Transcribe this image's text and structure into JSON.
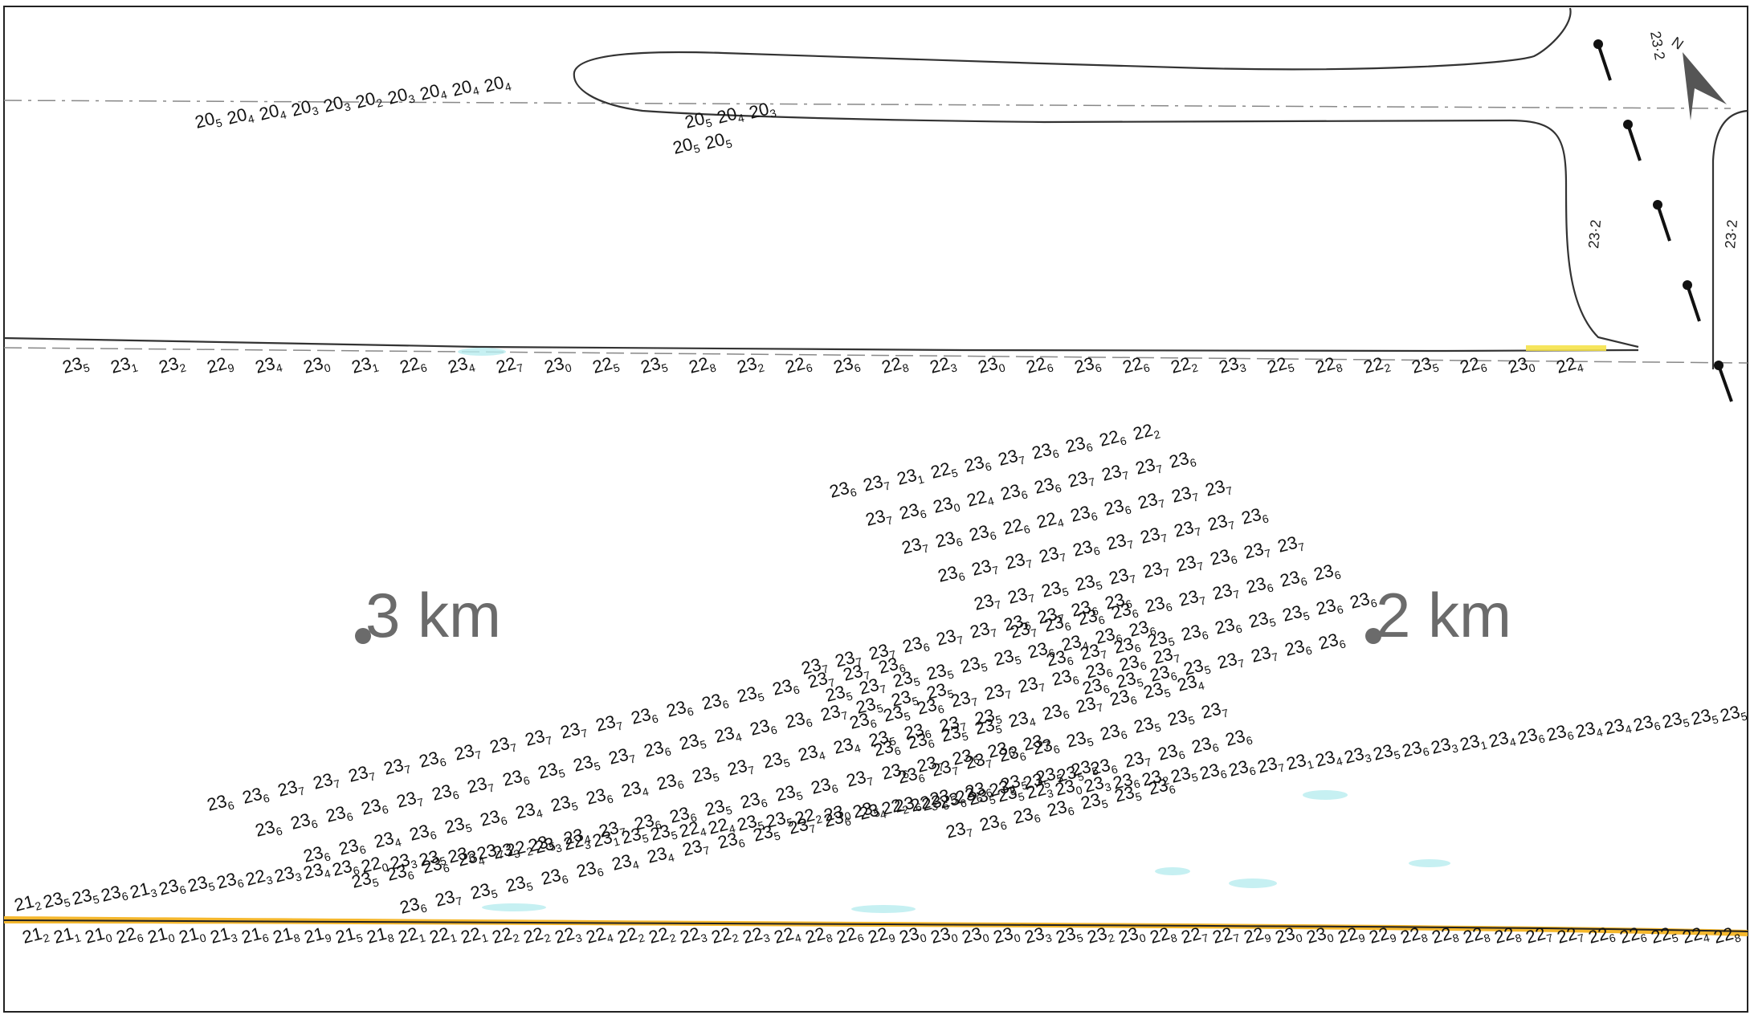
{
  "colors": {
    "frame": "#222222",
    "contour": "#333333",
    "route_line": "#888888",
    "shoal_fill": "#f5b82e",
    "water_tint": "#b8ecef",
    "sounding_text": "#111111",
    "distance_text": "#6b6b6b"
  },
  "icons": {
    "north_arrow": "north-arrow-icon",
    "distance_marker": "distance-marker-dot"
  },
  "north_label": "N",
  "distance_marks": [
    {
      "id": "3km",
      "label": "3 km"
    },
    {
      "id": "2km",
      "label": "2 km"
    }
  ],
  "contour_labels": [
    "23·2",
    "23·2",
    "23·2"
  ],
  "soundings": {
    "top_cluster_a": [
      "205",
      "204",
      "204",
      "203",
      "203",
      "202",
      "203",
      "204",
      "204",
      "204"
    ],
    "top_cluster_b": [
      "205",
      "204",
      "203",
      "205",
      "205"
    ],
    "upper_shore_row": [
      "235",
      "231",
      "232",
      "229",
      "234",
      "230",
      "231",
      "226",
      "234",
      "227",
      "230",
      "225",
      "235",
      "228",
      "232",
      "226",
      "236",
      "228",
      "223",
      "230",
      "226",
      "236",
      "226",
      "222",
      "233",
      "225",
      "228",
      "222",
      "235",
      "226",
      "230",
      "224"
    ],
    "upper_field": [
      "236",
      "237",
      "231",
      "225",
      "236",
      "237",
      "236",
      "236",
      "226",
      "222",
      "237",
      "236",
      "230",
      "224",
      "236",
      "236",
      "237",
      "237",
      "237",
      "236",
      "237",
      "236",
      "236",
      "226",
      "224",
      "236",
      "236",
      "237",
      "237",
      "237",
      "236",
      "237",
      "237",
      "237",
      "236",
      "237",
      "237",
      "237",
      "237",
      "236",
      "237",
      "237",
      "235",
      "235",
      "237",
      "237",
      "237",
      "236",
      "237",
      "237",
      "237",
      "236",
      "236",
      "236",
      "236",
      "237",
      "237",
      "236",
      "236",
      "236",
      "236",
      "237",
      "236",
      "235",
      "236",
      "236",
      "235",
      "235",
      "236",
      "236",
      "236",
      "235",
      "236",
      "235",
      "237",
      "237",
      "236",
      "236"
    ],
    "middle_field": [
      "237",
      "237",
      "237",
      "236",
      "237",
      "237",
      "236",
      "237",
      "236",
      "236",
      "235",
      "237",
      "235",
      "235",
      "235",
      "235",
      "236",
      "234",
      "236",
      "236",
      "236",
      "235",
      "236",
      "237",
      "237",
      "237",
      "236",
      "236",
      "236",
      "237",
      "236",
      "236",
      "235",
      "235",
      "234",
      "236",
      "237",
      "236",
      "235",
      "234",
      "236",
      "237",
      "237",
      "236",
      "236",
      "235",
      "236",
      "235",
      "235",
      "237",
      "236",
      "236",
      "235",
      "235",
      "235",
      "236",
      "237",
      "236",
      "236",
      "236",
      "237",
      "236",
      "236",
      "236",
      "235",
      "235",
      "236"
    ],
    "lower_field": [
      "236",
      "236",
      "237",
      "237",
      "237",
      "237",
      "236",
      "237",
      "237",
      "237",
      "237",
      "237",
      "236",
      "236",
      "236",
      "235",
      "236",
      "237",
      "237",
      "236",
      "236",
      "236",
      "236",
      "236",
      "237",
      "236",
      "237",
      "236",
      "235",
      "235",
      "237",
      "236",
      "235",
      "234",
      "236",
      "236",
      "237",
      "235",
      "235",
      "235",
      "236",
      "236",
      "234",
      "236",
      "235",
      "236",
      "234",
      "235",
      "236",
      "234",
      "236",
      "235",
      "237",
      "235",
      "234",
      "234",
      "235",
      "236",
      "237",
      "235",
      "235",
      "236",
      "236",
      "234",
      "233",
      "235",
      "234",
      "237",
      "236",
      "236",
      "235",
      "236",
      "235",
      "236",
      "237",
      "236",
      "237",
      "236",
      "236",
      "237",
      "236",
      "237",
      "235",
      "235",
      "236",
      "236",
      "234",
      "234",
      "237",
      "236",
      "235",
      "237",
      "236",
      "234",
      "236",
      "235",
      "236",
      "235",
      "235",
      "235"
    ],
    "shore_band_upper": [
      "212",
      "235",
      "235",
      "236",
      "213",
      "236",
      "235",
      "236",
      "223",
      "233",
      "234",
      "236",
      "220",
      "233",
      "235",
      "236",
      "237",
      "222",
      "233",
      "223",
      "231",
      "235",
      "235",
      "224",
      "224",
      "235",
      "235",
      "222",
      "230",
      "235",
      "222",
      "223",
      "236",
      "235",
      "235",
      "223",
      "230",
      "233",
      "236",
      "232",
      "235",
      "236",
      "236",
      "237",
      "231",
      "234",
      "233",
      "235",
      "236",
      "233",
      "231",
      "234",
      "236",
      "236",
      "234",
      "234",
      "236",
      "235",
      "235",
      "235",
      "234",
      "234",
      "235"
    ],
    "shore_band_lower": [
      "212",
      "211",
      "210",
      "226",
      "210",
      "210",
      "213",
      "216",
      "218",
      "219",
      "215",
      "218",
      "221",
      "221",
      "221",
      "222",
      "222",
      "223",
      "224",
      "222",
      "222",
      "223",
      "222",
      "223",
      "224",
      "228",
      "226",
      "229",
      "230",
      "230",
      "230",
      "230",
      "233",
      "235",
      "232",
      "230",
      "228",
      "227",
      "227",
      "229",
      "230",
      "230",
      "229",
      "229",
      "228",
      "228",
      "228",
      "228",
      "227",
      "227",
      "226",
      "226",
      "225",
      "224",
      "228"
    ]
  }
}
